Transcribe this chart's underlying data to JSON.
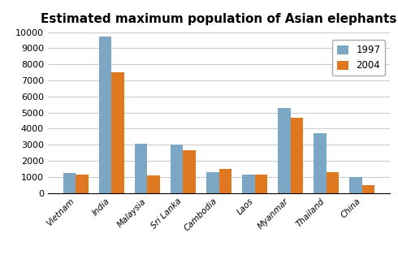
{
  "title": "Estimated maximum population of Asian elephants",
  "categories": [
    "Vietnam",
    "India",
    "Malaysia",
    "Sri Lanka",
    "Cambodia",
    "Laos",
    "Myanmar",
    "Thailand",
    "China"
  ],
  "values_1997": [
    1250,
    9750,
    3050,
    3000,
    1300,
    1150,
    5300,
    3700,
    1000
  ],
  "values_2004": [
    1150,
    7500,
    1075,
    2650,
    1500,
    1150,
    4700,
    1300,
    475
  ],
  "color_1997": "#7BA7C4",
  "color_2004": "#E07820",
  "legend_labels": [
    "1997",
    "2004"
  ],
  "ylim": [
    0,
    10000
  ],
  "yticks": [
    0,
    1000,
    2000,
    3000,
    4000,
    5000,
    6000,
    7000,
    8000,
    9000,
    10000
  ],
  "bar_width": 0.35,
  "grid_color": "#cccccc",
  "background_color": "#ffffff",
  "title_fontsize": 11
}
